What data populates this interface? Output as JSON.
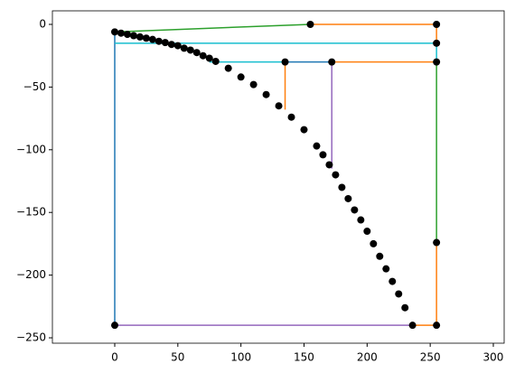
{
  "chart_data": {
    "type": "line",
    "xlim": [
      -49.4,
      308.6
    ],
    "ylim": [
      -254.3,
      10.8
    ],
    "xticks": [
      0,
      50,
      100,
      150,
      200,
      250,
      300
    ],
    "yticks": [
      0,
      {
        "value": -50,
        "label": "−50"
      },
      {
        "value": -100,
        "label": "−100"
      },
      {
        "value": -150,
        "label": "−150"
      },
      {
        "value": -200,
        "label": "−200"
      },
      {
        "value": -250,
        "label": "−250"
      }
    ],
    "series": [
      {
        "color": "#1f77b4",
        "x": [
          0,
          0
        ],
        "values": [
          -6,
          -240
        ]
      },
      {
        "color": "#2ca02c",
        "x": [
          0,
          155
        ],
        "values": [
          -6,
          0
        ]
      },
      {
        "color": "#ff7f0e",
        "x": [
          155,
          255,
          255
        ],
        "values": [
          0,
          0,
          -15
        ]
      },
      {
        "color": "#17becf",
        "x": [
          0,
          255,
          255
        ],
        "values": [
          -15,
          -15,
          -30
        ]
      },
      {
        "color": "#17becf",
        "x": [
          75,
          135
        ],
        "values": [
          -30,
          -30
        ]
      },
      {
        "color": "#1f77b4",
        "x": [
          135,
          172
        ],
        "values": [
          -30,
          -30
        ]
      },
      {
        "color": "#ff7f0e",
        "x": [
          135,
          135
        ],
        "values": [
          -30,
          -68
        ]
      },
      {
        "color": "#ff7f0e",
        "x": [
          172,
          255
        ],
        "values": [
          -30,
          -30
        ]
      },
      {
        "color": "#9467bd",
        "x": [
          172,
          172
        ],
        "values": [
          -30,
          -115
        ]
      },
      {
        "color": "#2ca02c",
        "x": [
          255,
          255
        ],
        "values": [
          -30,
          -174
        ]
      },
      {
        "color": "#ff7f0e",
        "x": [
          255,
          255,
          236
        ],
        "values": [
          -174,
          -240,
          -240
        ]
      },
      {
        "color": "#9467bd",
        "x": [
          0,
          236
        ],
        "values": [
          -240,
          -240
        ]
      }
    ],
    "markers": {
      "color": "#000000",
      "x": [
        155,
        255,
        255,
        255,
        135,
        172,
        255,
        255,
        0,
        0,
        5,
        10,
        15,
        20,
        25,
        30,
        35,
        40,
        45,
        50,
        55,
        60,
        65,
        70,
        75,
        80,
        90,
        100,
        110,
        120,
        130,
        140,
        150,
        160,
        165,
        170,
        175,
        180,
        185,
        190,
        195,
        200,
        205,
        210,
        215,
        220,
        225,
        230,
        236
      ],
      "values": [
        0,
        0,
        -15,
        -30,
        -30,
        -30,
        -174,
        -240,
        -240,
        -6,
        -7,
        -8,
        -9,
        -10,
        -11,
        -12,
        -13.5,
        -14.5,
        -16,
        -17,
        -19,
        -20.5,
        -22.5,
        -25,
        -27,
        -29.5,
        -35,
        -42,
        -48,
        -56,
        -65,
        -74,
        -84,
        -97,
        -104,
        -112,
        -120,
        -130,
        -139,
        -148,
        -156,
        -165,
        -175,
        -185,
        -195,
        -205,
        -215,
        -226,
        -240
      ]
    }
  }
}
